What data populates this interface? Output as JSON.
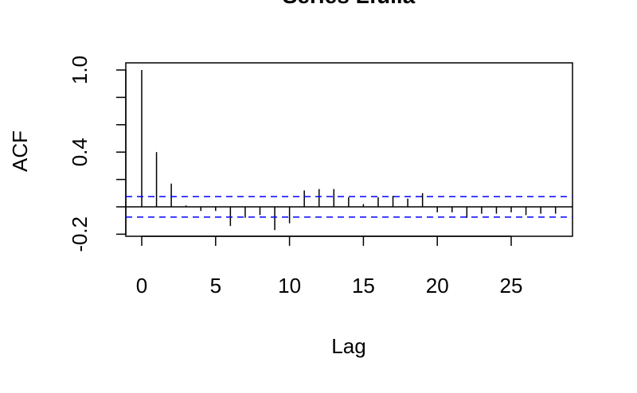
{
  "chart_data": {
    "type": "bar",
    "title": "Series  Lfulla",
    "xlabel": "Lag",
    "ylabel": "ACF",
    "xlim": [
      -1,
      29
    ],
    "ylim": [
      -0.2,
      1.05
    ],
    "x_ticks": [
      0,
      5,
      10,
      15,
      20,
      25
    ],
    "x_tick_labels": [
      "0",
      "5",
      "10",
      "15",
      "20",
      "25"
    ],
    "y_ticks": [
      -0.2,
      0.0,
      0.2,
      0.4,
      0.6,
      0.8,
      1.0
    ],
    "y_tick_labels": [
      "-0.2",
      "",
      "",
      "0.4",
      "",
      "",
      "1.0"
    ],
    "lags": [
      0,
      1,
      2,
      3,
      4,
      5,
      6,
      7,
      8,
      9,
      10,
      11,
      12,
      13,
      14,
      15,
      16,
      17,
      18,
      19,
      20,
      21,
      22,
      23,
      24,
      25,
      26,
      27,
      28
    ],
    "values": [
      1.0,
      0.4,
      0.17,
      0.01,
      -0.03,
      -0.03,
      -0.14,
      -0.08,
      -0.06,
      -0.17,
      -0.12,
      0.12,
      0.13,
      0.13,
      0.07,
      0.02,
      0.07,
      0.08,
      0.06,
      0.1,
      -0.04,
      -0.04,
      -0.08,
      -0.05,
      -0.05,
      -0.04,
      -0.06,
      -0.05,
      -0.05
    ],
    "confidence_bound": 0.075,
    "colors": {
      "bars": "#000000",
      "confidence": "#0000ff",
      "axis": "#000000"
    },
    "grid": false
  }
}
